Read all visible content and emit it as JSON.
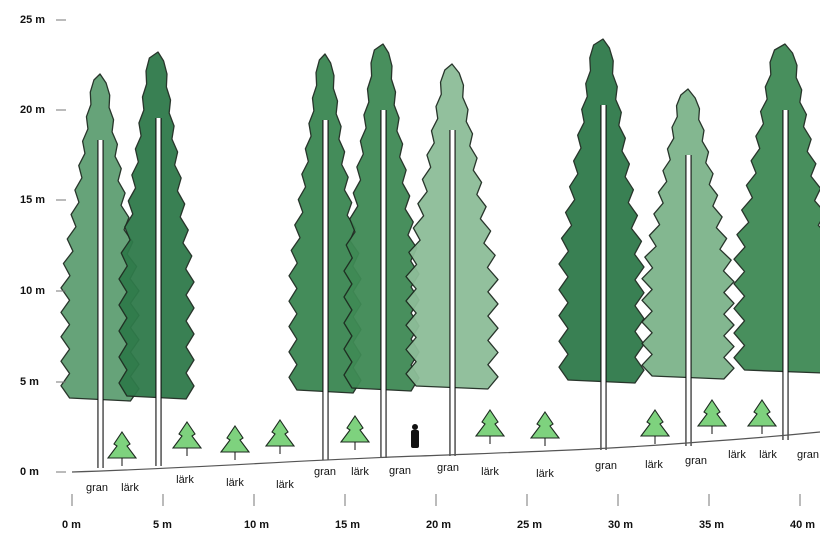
{
  "y_axis": {
    "labels": [
      "25 m",
      "20 m",
      "15 m",
      "10 m",
      "5 m",
      "0 m"
    ]
  },
  "x_axis": {
    "labels": [
      "0 m",
      "5 m",
      "10 m",
      "15 m",
      "20 m",
      "25 m",
      "30 m",
      "35 m",
      "40 m"
    ]
  },
  "trees": [
    {
      "label": "gran"
    },
    {
      "label": "lärk"
    },
    {
      "label": "lärk"
    },
    {
      "label": "lärk"
    },
    {
      "label": "lärk"
    },
    {
      "label": "gran"
    },
    {
      "label": "lärk"
    },
    {
      "label": "gran"
    },
    {
      "label": "gran"
    },
    {
      "label": "lärk"
    },
    {
      "label": "lärk"
    },
    {
      "label": "gran"
    },
    {
      "label": "lärk"
    },
    {
      "label": "gran"
    },
    {
      "label": "lärk"
    },
    {
      "label": "lärk"
    },
    {
      "label": "gran"
    }
  ]
}
